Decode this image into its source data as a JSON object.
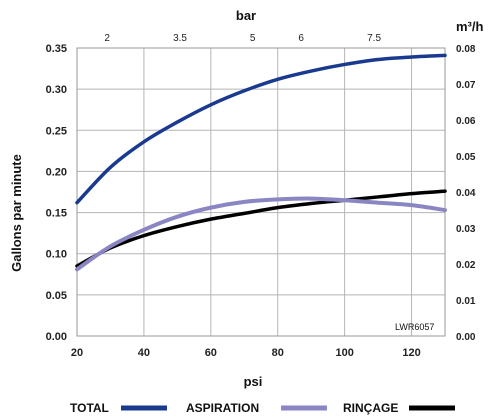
{
  "chart_data": {
    "type": "line",
    "x_label": "psi",
    "y_label": "Gallons par minute",
    "top_axis_label": "bar",
    "right_axis_label": "m³/h",
    "figure_code": "LWR6057",
    "x_range": [
      20,
      130
    ],
    "y_range": [
      0,
      0.35
    ],
    "right_range": [
      0,
      0.08
    ],
    "x_ticks": [
      "20",
      "40",
      "60",
      "80",
      "100",
      "120"
    ],
    "y_ticks": [
      "0.00",
      "0.05",
      "0.10",
      "0.15",
      "0.20",
      "0.25",
      "0.30",
      "0.35"
    ],
    "right_ticks": [
      "0.00",
      "0.01",
      "0.02",
      "0.03",
      "0.04",
      "0.05",
      "0.06",
      "0.07",
      "0.08"
    ],
    "top_ticks": [
      {
        "label": "2",
        "psi": 29
      },
      {
        "label": "3.5",
        "psi": 50.8
      },
      {
        "label": "5",
        "psi": 72.5
      },
      {
        "label": "6",
        "psi": 87
      },
      {
        "label": "7.5",
        "psi": 108.8
      }
    ],
    "grid": true,
    "legend_position": "bottom",
    "series": [
      {
        "name": "TOTAL",
        "color": "#1a3a8f",
        "x": [
          20,
          30,
          40,
          50,
          60,
          70,
          80,
          90,
          100,
          110,
          120,
          130
        ],
        "y": [
          0.162,
          0.205,
          0.236,
          0.26,
          0.281,
          0.298,
          0.312,
          0.322,
          0.33,
          0.336,
          0.339,
          0.341
        ]
      },
      {
        "name": "ASPIRATION",
        "color": "#8a86c4",
        "x": [
          20,
          30,
          40,
          50,
          60,
          70,
          80,
          90,
          100,
          110,
          120,
          130
        ],
        "y": [
          0.081,
          0.109,
          0.129,
          0.145,
          0.156,
          0.163,
          0.166,
          0.167,
          0.165,
          0.162,
          0.159,
          0.153
        ]
      },
      {
        "name": "RINÇAGE",
        "color": "#000000",
        "x": [
          20,
          30,
          40,
          50,
          60,
          70,
          80,
          90,
          100,
          110,
          120,
          130
        ],
        "y": [
          0.085,
          0.107,
          0.122,
          0.133,
          0.142,
          0.149,
          0.156,
          0.161,
          0.165,
          0.169,
          0.173,
          0.176
        ]
      }
    ]
  }
}
